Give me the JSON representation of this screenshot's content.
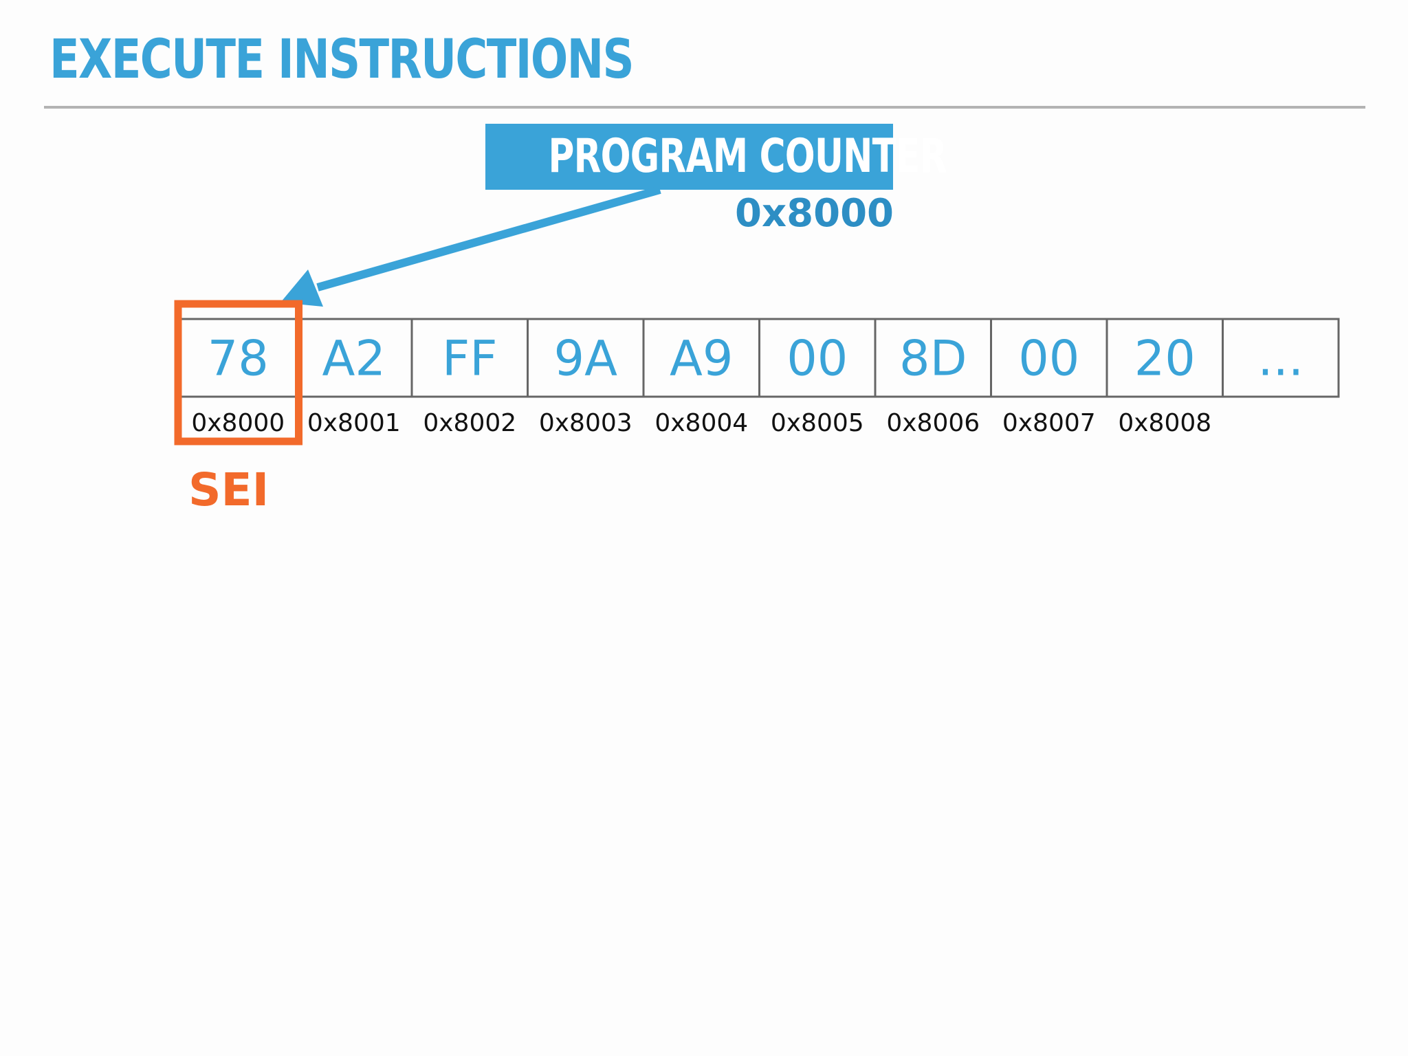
{
  "slide": {
    "title": "EXECUTE INSTRUCTIONS",
    "program_counter": {
      "label": "PROGRAM COUNTER",
      "value": "0x8000"
    },
    "memory": {
      "cells": [
        {
          "byte": "78",
          "address": "0x8000"
        },
        {
          "byte": "A2",
          "address": "0x8001"
        },
        {
          "byte": "FF",
          "address": "0x8002"
        },
        {
          "byte": "9A",
          "address": "0x8003"
        },
        {
          "byte": "A9",
          "address": "0x8004"
        },
        {
          "byte": "00",
          "address": "0x8005"
        },
        {
          "byte": "8D",
          "address": "0x8006"
        },
        {
          "byte": "00",
          "address": "0x8007"
        },
        {
          "byte": "20",
          "address": "0x8008"
        },
        {
          "byte": "...",
          "address": ""
        }
      ],
      "highlighted_index": 0
    },
    "current_instruction": "SEI"
  },
  "colors": {
    "accent_blue": "#3aa3d8",
    "value_blue": "#2d8ec4",
    "highlight_orange": "#f26a2b",
    "cell_border": "#666666",
    "rule": "#b3b3b3"
  }
}
